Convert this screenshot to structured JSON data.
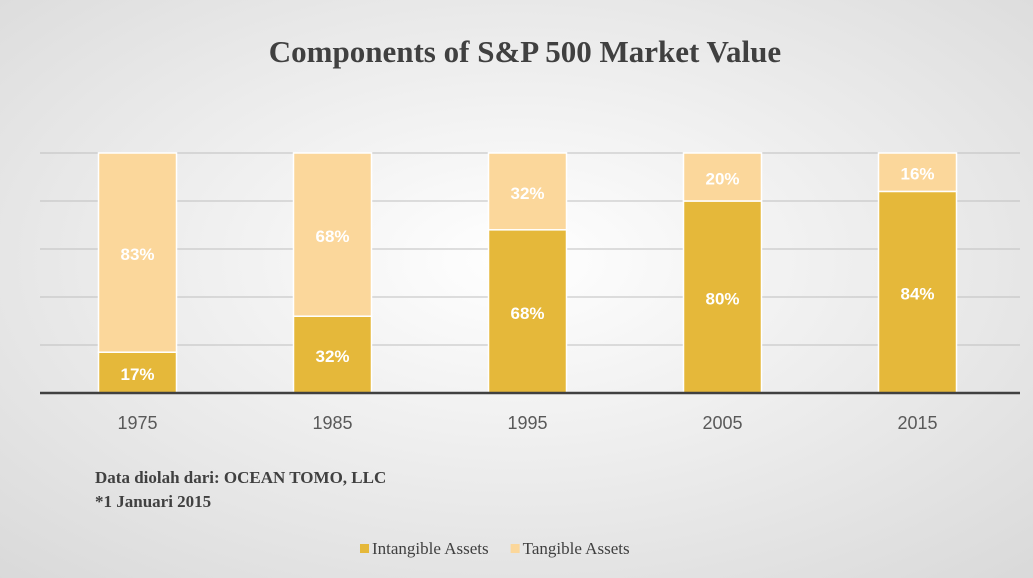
{
  "chart_data": {
    "type": "stacked_bar",
    "title": "Components of S&P 500 Market Value",
    "categories": [
      "1975",
      "1985",
      "1995",
      "2005",
      "2015"
    ],
    "series": [
      {
        "name": "Intangible Assets",
        "color": "#e5b83a",
        "values": [
          17,
          32,
          68,
          80,
          84
        ],
        "value_labels": [
          "17%",
          "32%",
          "68%",
          "80%",
          "84%"
        ]
      },
      {
        "name": "Tangible Assets",
        "color": "#fbd79b",
        "values": [
          83,
          68,
          32,
          20,
          16
        ],
        "value_labels": [
          "83%",
          "68%",
          "32%",
          "20%",
          "16%"
        ]
      }
    ],
    "ylim": [
      0,
      100
    ],
    "yticks": [
      0,
      20,
      40,
      60,
      80,
      100
    ],
    "grid": true,
    "show_ytick_labels": false,
    "notes": [
      "Data diolah dari: OCEAN TOMO, LLC",
      "*1 Januari 2015"
    ],
    "legend": "bottom"
  }
}
